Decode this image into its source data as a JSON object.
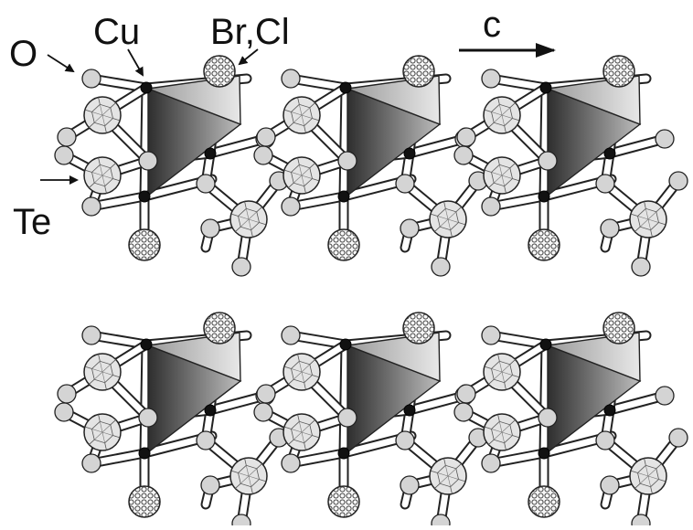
{
  "labels": {
    "oxygen": "O",
    "copper": "Cu",
    "halogen": "Br,Cl",
    "tellurium": "Te",
    "axis": "c"
  },
  "colors": {
    "background": "#ffffff",
    "oxygen_fill": "#d4d4d4",
    "tellurium_fill": "#e4e4e4",
    "halogen_fill": "#f4f4f4",
    "copper_fill": "#111111",
    "bond_fill": "#ffffff",
    "outline": "#222222",
    "polyhedron_dark": "#3a3a3a",
    "polyhedron_light": "#c8c8c8"
  }
}
